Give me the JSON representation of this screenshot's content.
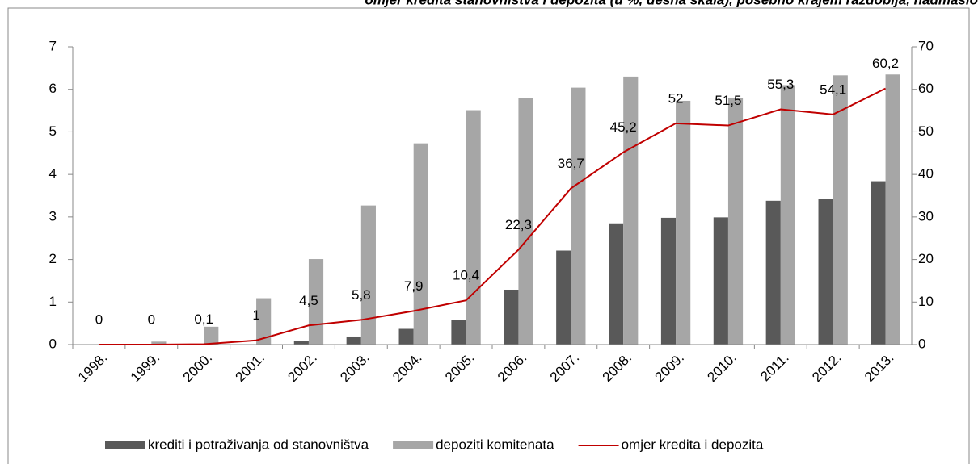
{
  "chart_data": {
    "type": "bar",
    "title": "omjer kredita stanovništva i depozita (u %, desna skala), posebno krajem razdoblja, nadmašio",
    "categories": [
      "1998.",
      "1999.",
      "2000.",
      "2001.",
      "2002.",
      "2003.",
      "2004.",
      "2005.",
      "2006.",
      "2007.",
      "2008.",
      "2009.",
      "2010.",
      "2011.",
      "2012.",
      "2013."
    ],
    "series": [
      {
        "name": "krediti i potraživanja od stanovništva",
        "color": "#595959",
        "type": "bar",
        "values": [
          0,
          0,
          0,
          0,
          0.08,
          0.19,
          0.37,
          0.57,
          1.29,
          2.21,
          2.85,
          2.98,
          2.99,
          3.38,
          3.43,
          3.84
        ]
      },
      {
        "name": "depoziti komitenata",
        "color": "#a6a6a6",
        "type": "bar",
        "values": [
          0,
          0.07,
          0.42,
          1.09,
          2.01,
          3.27,
          4.73,
          5.51,
          5.8,
          6.04,
          6.3,
          5.73,
          5.8,
          6.1,
          6.33,
          6.35
        ]
      },
      {
        "name": "omjer kredita i depozita",
        "color": "#c00000",
        "type": "line",
        "axis": "y2",
        "values": [
          0,
          0,
          0.1,
          1,
          4.5,
          5.8,
          7.9,
          10.4,
          22.3,
          36.7,
          45.2,
          52,
          51.5,
          55.3,
          54.1,
          60.2
        ],
        "value_labels": [
          "0",
          "0",
          "0,1",
          "1",
          "4,5",
          "5,8",
          "7,9",
          "10,4",
          "22,3",
          "36,7",
          "45,2",
          "52",
          "51,5",
          "55,3",
          "54,1",
          "60,2"
        ]
      }
    ],
    "ylim": [
      0,
      7
    ],
    "yticks": [
      0,
      1,
      2,
      3,
      4,
      5,
      6,
      7
    ],
    "y2lim": [
      0,
      70
    ],
    "y2ticks": [
      0,
      10,
      20,
      30,
      40,
      50,
      60,
      70
    ],
    "legend": "bottom"
  }
}
